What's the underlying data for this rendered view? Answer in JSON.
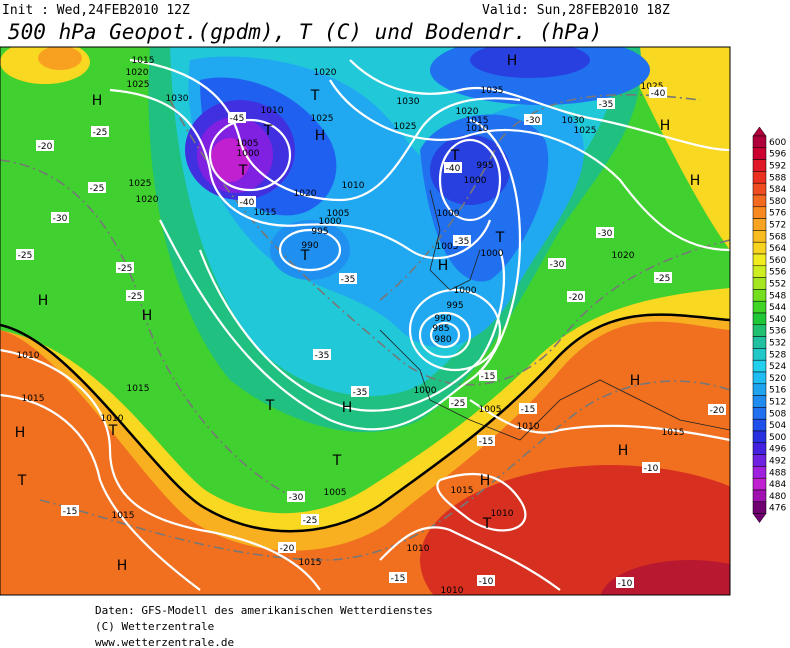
{
  "header": {
    "init": "Init : Wed,24FEB2010 12Z",
    "valid": "Valid: Sun,28FEB2010 18Z",
    "title": "500 hPa Geopot.(gpdm), T (C) und Bodendr. (hPa)"
  },
  "map_labels": [
    "H",
    "H",
    "H",
    "H",
    "T",
    "T",
    "H",
    "T",
    "H",
    "T",
    "T",
    "T",
    "H",
    "T",
    "T",
    "H",
    "T",
    "H",
    "T",
    "H",
    "H",
    "H",
    "H",
    "H",
    "T",
    "1015",
    "1020",
    "1025",
    "1030",
    "1020",
    "1010",
    "1025",
    "1005",
    "1000",
    "1010",
    "1020",
    "1015",
    "1005",
    "1000",
    "995",
    "990",
    "1030",
    "1025",
    "1035",
    "1020",
    "1015",
    "1010",
    "995",
    "1000",
    "1000",
    "1005",
    "1000",
    "1000",
    "995",
    "990",
    "985",
    "980",
    "1030",
    "1025",
    "1025",
    "1020",
    "1025",
    "1020",
    "1010",
    "1015",
    "1015",
    "1010",
    "1000",
    "1005",
    "1010",
    "1015",
    "1010",
    "1015",
    "1005",
    "1015",
    "1010",
    "1015",
    "1010",
    "-25",
    "-25",
    "-30",
    "-25",
    "-25",
    "-25",
    "-45",
    "-40",
    "-35",
    "-35",
    "-35",
    "-40",
    "-35",
    "-30",
    "-30",
    "-35",
    "-40",
    "-30",
    "-25",
    "-20",
    "-25",
    "-15",
    "-15",
    "-15",
    "-20",
    "-10",
    "-15",
    "-20",
    "-25",
    "-30",
    "-15",
    "-10",
    "-10",
    "-20"
  ],
  "legend": {
    "values": [
      600,
      596,
      592,
      588,
      584,
      580,
      576,
      572,
      568,
      564,
      560,
      556,
      552,
      548,
      544,
      540,
      536,
      532,
      528,
      524,
      520,
      516,
      512,
      508,
      504,
      500,
      496,
      492,
      488,
      484,
      480,
      476
    ],
    "colors": [
      "#b0003c",
      "#cc0030",
      "#e01828",
      "#ec3020",
      "#f04c20",
      "#f46a20",
      "#f88820",
      "#f8a420",
      "#f8bc20",
      "#f8d420",
      "#f0ec20",
      "#cdee20",
      "#a4e620",
      "#74de20",
      "#40d424",
      "#20c838",
      "#20c070",
      "#20c0a0",
      "#20c8c8",
      "#20d0ec",
      "#20bcf4",
      "#20a4f0",
      "#208cf0",
      "#2070f0",
      "#2050ec",
      "#2830e0",
      "#4420e0",
      "#7020e0",
      "#a020e0",
      "#c020d0",
      "#a010b0",
      "#700070"
    ]
  },
  "footer": [
    "Daten: GFS-Modell des amerikanischen Wetterdienstes",
    "(C) Wetterzentrale",
    "www.wetterzentrale.de"
  ]
}
